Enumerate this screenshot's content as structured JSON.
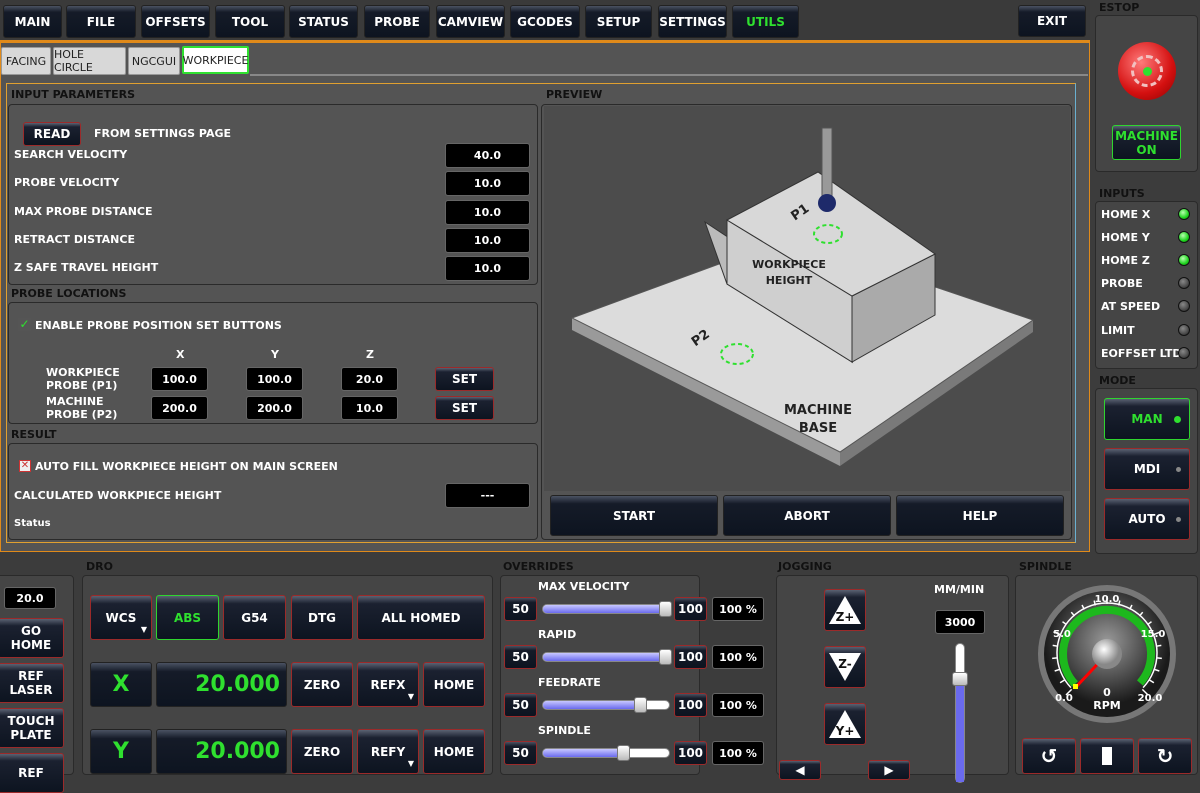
{
  "nav": {
    "items": [
      "MAIN",
      "FILE",
      "OFFSETS",
      "TOOL",
      "STATUS",
      "PROBE",
      "CAMVIEW",
      "GCODES",
      "SETUP",
      "SETTINGS",
      "UTILS"
    ],
    "active": "UTILS",
    "exit": "EXIT"
  },
  "tabs": {
    "items": [
      "FACING",
      "HOLE CIRCLE",
      "NGCGUI",
      "WORKPIECE"
    ],
    "active": "WORKPIECE"
  },
  "input_params": {
    "title": "INPUT PARAMETERS",
    "read_button": "READ",
    "read_label": "FROM SETTINGS PAGE",
    "rows": [
      {
        "label": "SEARCH VELOCITY",
        "value": "40.0"
      },
      {
        "label": "PROBE VELOCITY",
        "value": "10.0"
      },
      {
        "label": "MAX PROBE DISTANCE",
        "value": "10.0"
      },
      {
        "label": "RETRACT DISTANCE",
        "value": "10.0"
      },
      {
        "label": "Z SAFE TRAVEL HEIGHT",
        "value": "10.0"
      }
    ]
  },
  "probe_locations": {
    "title": "PROBE LOCATIONS",
    "enable_label": "ENABLE PROBE POSITION SET BUTTONS",
    "enable_checked": true,
    "col_x": "X",
    "col_y": "Y",
    "col_z": "Z",
    "rows": [
      {
        "label": "WORKPIECE PROBE (P1)",
        "x": "100.0",
        "y": "100.0",
        "z": "20.0",
        "set": "SET"
      },
      {
        "label": "MACHINE PROBE (P2)",
        "x": "200.0",
        "y": "200.0",
        "z": "10.0",
        "set": "SET"
      }
    ]
  },
  "result": {
    "title": "RESULT",
    "autofill_label": "AUTO FILL WORKPIECE HEIGHT ON MAIN SCREEN",
    "autofill_checked": false,
    "calc_label": "CALCULATED WORKPIECE HEIGHT",
    "calc_value": "---",
    "status": "Status"
  },
  "preview": {
    "title": "PREVIEW",
    "p1": "P1",
    "p2": "P2",
    "workpiece": "WORKPIECE",
    "height": "HEIGHT",
    "machine": "MACHINE",
    "base": "BASE",
    "start": "START",
    "abort": "ABORT",
    "help": "HELP"
  },
  "estop": {
    "title": "ESTOP",
    "machine_on": "MACHINE ON"
  },
  "inputs": {
    "title": "INPUTS",
    "items": [
      {
        "label": "HOME X",
        "on": true
      },
      {
        "label": "HOME Y",
        "on": true
      },
      {
        "label": "HOME Z",
        "on": true
      },
      {
        "label": "PROBE",
        "on": false
      },
      {
        "label": "AT SPEED",
        "on": false
      },
      {
        "label": "LIMIT",
        "on": false
      },
      {
        "label": "EOFFSET LTD",
        "on": false
      }
    ]
  },
  "mode": {
    "title": "MODE",
    "items": [
      "MAN",
      "MDI",
      "AUTO"
    ],
    "active": "MAN"
  },
  "left": {
    "value": "20.0",
    "buttons": [
      "GO HOME",
      "REF LASER",
      "TOUCH PLATE",
      "REF"
    ]
  },
  "dro": {
    "title": "DRO",
    "wcs": "WCS",
    "abs": "ABS",
    "g54": "G54",
    "dtg": "DTG",
    "homed": "ALL HOMED",
    "axes": [
      {
        "axis": "X",
        "value": "20.000",
        "zero": "ZERO",
        "ref": "REFX",
        "home": "HOME"
      },
      {
        "axis": "Y",
        "value": "20.000",
        "zero": "ZERO",
        "ref": "REFY",
        "home": "HOME"
      }
    ]
  },
  "overrides": {
    "title": "OVERRIDES",
    "items": [
      {
        "label": "MAX VELOCITY",
        "min": "50",
        "max": "100",
        "value": "100 %",
        "percent": 100
      },
      {
        "label": "RAPID",
        "min": "50",
        "max": "100",
        "value": "100 %",
        "percent": 100
      },
      {
        "label": "FEEDRATE",
        "min": "50",
        "max": "100",
        "value": "100 %",
        "percent": 100
      },
      {
        "label": "SPINDLE",
        "min": "50",
        "max": "100",
        "value": "100 %",
        "percent": 100
      }
    ]
  },
  "jogging": {
    "title": "JOGGING",
    "units": "MM/MIN",
    "rate": "3000",
    "zplus": "Z+",
    "zminus": "Z-",
    "yplus": "Y+"
  },
  "spindle": {
    "title": "SPINDLE",
    "ticks": [
      "0.0",
      "5.0",
      "10.0",
      "15.0",
      "20.0"
    ],
    "rpm_value": "0",
    "rpm_label": "RPM"
  },
  "colors": {
    "accent_green": "#2fe02f",
    "border_red": "#9b2a2a",
    "frame_orange": "#e08a1a"
  }
}
